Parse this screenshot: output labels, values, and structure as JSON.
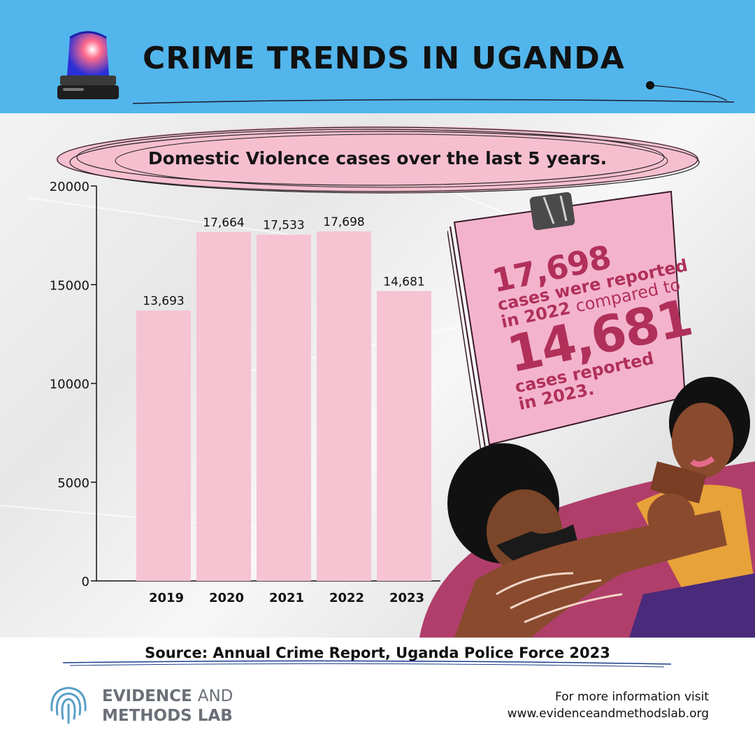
{
  "header": {
    "title": "CRIME TRENDS IN UGANDA",
    "background_color": "#52b5ec",
    "icon": "police-siren-icon"
  },
  "chart_data": {
    "type": "bar",
    "title": "Domestic Violence cases over the last 5 years.",
    "categories": [
      "2019",
      "2020",
      "2021",
      "2022",
      "2023"
    ],
    "values": [
      13693,
      17664,
      17533,
      17698,
      14681
    ],
    "value_labels": [
      "13,693",
      "17,664",
      "17,533",
      "17,698",
      "14,681"
    ],
    "yticks": [
      "0",
      "5000",
      "10000",
      "15000",
      "20000"
    ],
    "ylim": [
      0,
      20000
    ],
    "xlabel": "",
    "ylabel": "",
    "grid": false,
    "bar_color": "#f6c3d3"
  },
  "callout": {
    "value_2022": "17,698",
    "text_2022_a": "cases were reported",
    "text_2022_b": "in 2022",
    "text_compared": "compared to",
    "value_2023": "14,681",
    "text_2023_a": "cases reported",
    "text_2023_b": "in 2023.",
    "accent_color": "#b0305a",
    "card_color": "#f4b3cc"
  },
  "footer": {
    "source": "Source: Annual Crime Report, Uganda Police Force 2023",
    "logo_bold_1": "EVIDENCE",
    "logo_light_1": "AND",
    "logo_bold_2": "METHODS LAB",
    "logo_icon": "fingerprint-icon",
    "more_info_label": "For more information visit",
    "website": "www.evidenceandmethodslab.org"
  }
}
